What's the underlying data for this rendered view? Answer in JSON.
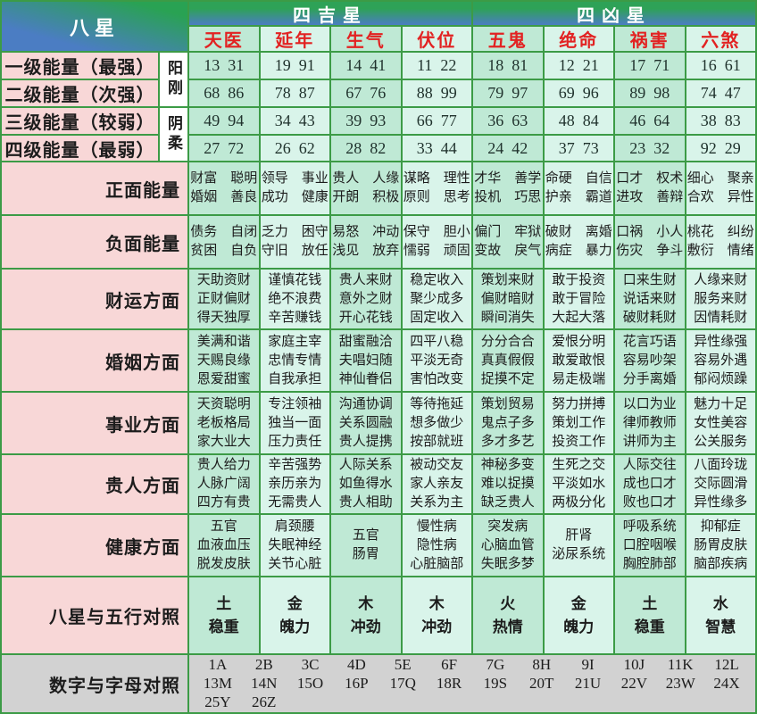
{
  "header": {
    "corner": "八星",
    "groups": [
      {
        "label": "四吉星"
      },
      {
        "label": "四凶星"
      }
    ],
    "stars": [
      "天医",
      "延年",
      "生气",
      "伏位",
      "五鬼",
      "绝命",
      "祸害",
      "六煞"
    ]
  },
  "yin_yang": {
    "yang": "阳刚",
    "yin": "阴柔"
  },
  "energy_rows": [
    {
      "label": "一级能量（最强）",
      "values": [
        "13  31",
        "19  91",
        "14  41",
        "11  22",
        "18  81",
        "12  21",
        "17  71",
        "16  61"
      ]
    },
    {
      "label": "二级能量（次强）",
      "values": [
        "68  86",
        "78  87",
        "67  76",
        "88  99",
        "79  97",
        "69  96",
        "89  98",
        "74  47"
      ]
    },
    {
      "label": "三级能量（较弱）",
      "values": [
        "49  94",
        "34  43",
        "39  93",
        "66  77",
        "36  63",
        "48  84",
        "46  64",
        "38  83"
      ]
    },
    {
      "label": "四级能量（最弱）",
      "values": [
        "27  72",
        "26  62",
        "28  82",
        "33  44",
        "24  42",
        "37  73",
        "23  32",
        "92  29"
      ]
    }
  ],
  "aspect_rows": [
    {
      "label": "正面能量",
      "cells": [
        [
          "财富　聪明",
          "婚姻　善良"
        ],
        [
          "领导　事业",
          "成功　健康"
        ],
        [
          "贵人　人缘",
          "开朗　积极"
        ],
        [
          "谋略　理性",
          "原则　思考"
        ],
        [
          "才华　善学",
          "投机　巧思"
        ],
        [
          "命硬　自信",
          "护亲　霸道"
        ],
        [
          "口才　权术",
          "进攻　善辩"
        ],
        [
          "细心　聚亲",
          "合欢　异性"
        ]
      ]
    },
    {
      "label": "负面能量",
      "cells": [
        [
          "债务　自闭",
          "贫困　自负"
        ],
        [
          "乏力　困守",
          "守旧　放任"
        ],
        [
          "易怒　冲动",
          "浅见　放弃"
        ],
        [
          "保守　胆小",
          "懦弱　顽固"
        ],
        [
          "偏门　牢狱",
          "变故　戾气"
        ],
        [
          "破财　离婚",
          "病症　暴力"
        ],
        [
          "口祸　小人",
          "伤灾　争斗"
        ],
        [
          "桃花　纠纷",
          "敷衍　情绪"
        ]
      ]
    },
    {
      "label": "财运方面",
      "cells": [
        [
          "天助资财",
          "正财偏财",
          "得天独厚"
        ],
        [
          "谨慎花钱",
          "绝不浪费",
          "辛苦赚钱"
        ],
        [
          "贵人来财",
          "意外之财",
          "开心花钱"
        ],
        [
          "稳定收入",
          "聚少成多",
          "固定收入"
        ],
        [
          "策划来财",
          "偏财暗财",
          "瞬间消失"
        ],
        [
          "敢于投资",
          "敢于冒险",
          "大起大落"
        ],
        [
          "口来生财",
          "说话来财",
          "破财耗财"
        ],
        [
          "人缘来财",
          "服务来财",
          "因情耗财"
        ]
      ]
    },
    {
      "label": "婚姻方面",
      "cells": [
        [
          "美满和谐",
          "天赐良缘",
          "恩爱甜蜜"
        ],
        [
          "家庭主宰",
          "忠情专情",
          "自我承担"
        ],
        [
          "甜蜜融洽",
          "夫唱妇随",
          "神仙眷侣"
        ],
        [
          "四平八稳",
          "平淡无奇",
          "害怕改变"
        ],
        [
          "分分合合",
          "真真假假",
          "捉摸不定"
        ],
        [
          "爱恨分明",
          "敢爱敢恨",
          "易走极端"
        ],
        [
          "花言巧语",
          "容易吵架",
          "分手离婚"
        ],
        [
          "异性缘强",
          "容易外遇",
          "郁闷烦躁"
        ]
      ]
    },
    {
      "label": "事业方面",
      "cells": [
        [
          "天资聪明",
          "老板格局",
          "家大业大"
        ],
        [
          "专注领袖",
          "独当一面",
          "压力责任"
        ],
        [
          "沟通协调",
          "关系圆融",
          "贵人提携"
        ],
        [
          "等待拖延",
          "想多做少",
          "按部就班"
        ],
        [
          "策划贸易",
          "鬼点子多",
          "多才多艺"
        ],
        [
          "努力拼搏",
          "策划工作",
          "投资工作"
        ],
        [
          "以口为业",
          "律师教师",
          "讲师为主"
        ],
        [
          "魅力十足",
          "女性美容",
          "公关服务"
        ]
      ]
    },
    {
      "label": "贵人方面",
      "cells": [
        [
          "贵人给力",
          "人脉广阔",
          "四方有贵"
        ],
        [
          "辛苦强势",
          "亲历亲为",
          "无需贵人"
        ],
        [
          "人际关系",
          "如鱼得水",
          "贵人相助"
        ],
        [
          "被动交友",
          "家人亲友",
          "关系为主"
        ],
        [
          "神秘多变",
          "难以捉摸",
          "缺乏贵人"
        ],
        [
          "生死之交",
          "平淡如水",
          "两极分化"
        ],
        [
          "人际交往",
          "成也口才",
          "败也口才"
        ],
        [
          "八面玲珑",
          "交际圆滑",
          "异性缘多"
        ]
      ]
    },
    {
      "label": "健康方面",
      "cells": [
        [
          "五官",
          "血液血压",
          "脱发皮肤"
        ],
        [
          "肩颈腰",
          "失眠神经",
          "关节心脏"
        ],
        [
          "五官",
          "肠胃"
        ],
        [
          "慢性病",
          "隐性病",
          "心脏脑部"
        ],
        [
          "突发病",
          "心脑血管",
          "失眠多梦"
        ],
        [
          "肝肾",
          "泌尿系统"
        ],
        [
          "呼吸系统",
          "口腔咽喉",
          "胸腔肺部"
        ],
        [
          "抑郁症",
          "肠胃皮肤",
          "脑部疾病"
        ]
      ]
    },
    {
      "label": "八星与五行对照",
      "cells": [
        [
          "土",
          "稳重"
        ],
        [
          "金",
          "魄力"
        ],
        [
          "木",
          "冲劲"
        ],
        [
          "木",
          "冲劲"
        ],
        [
          "火",
          "热情"
        ],
        [
          "金",
          "魄力"
        ],
        [
          "土",
          "稳重"
        ],
        [
          "水",
          "智慧"
        ]
      ]
    }
  ],
  "number_letter": {
    "label": "数字与字母对照",
    "rows": [
      [
        "1A",
        "2B",
        "3C",
        "4D",
        "5E",
        "6F",
        "7G",
        "8H",
        "9I",
        "10J",
        "11K",
        "12L"
      ],
      [
        "13M",
        "14N",
        "15O",
        "16P",
        "17Q",
        "18R",
        "19S",
        "20T",
        "21U",
        "22V",
        "23W",
        "24X"
      ],
      [
        "25Y",
        "26Z"
      ]
    ]
  },
  "colors": {
    "border_green": "#3c9b46",
    "cell_dark": "#bfe9d5",
    "cell_light": "#d9f4ea",
    "label_pink": "#f8d7d7",
    "bottom_gray": "#d2d2d2",
    "star_red": "#e22222",
    "header_green": "#2ea257",
    "header_blue": "#4b7dc3"
  }
}
